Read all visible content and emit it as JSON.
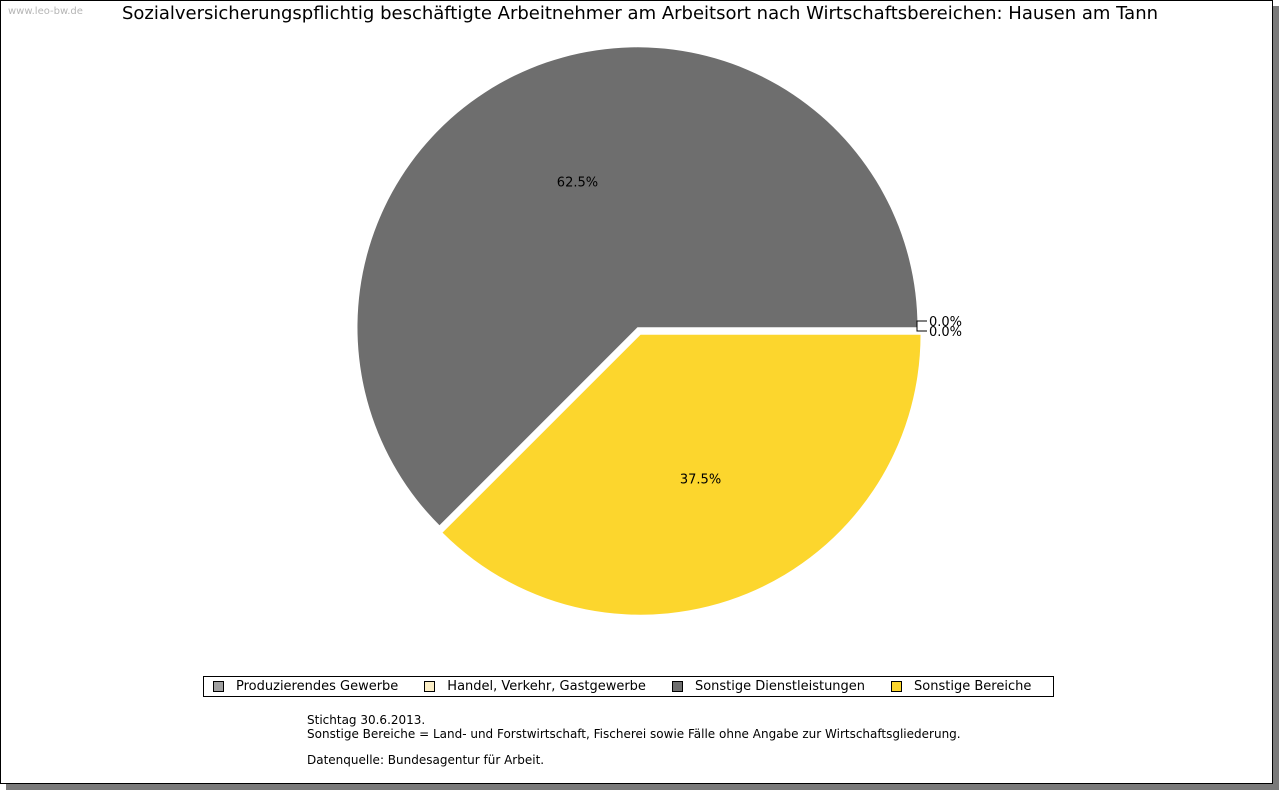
{
  "watermark": "www.leo-bw.de",
  "title": "Sozialversicherungspflichtig beschäftigte Arbeitnehmer am Arbeitsort nach Wirtschaftsbereichen: Hausen am Tann",
  "chart_data": {
    "type": "pie",
    "title": "Sozialversicherungspflichtig beschäftigte Arbeitnehmer am Arbeitsort nach Wirtschaftsbereichen: Hausen am Tann",
    "slices": [
      {
        "name": "Produzierendes Gewerbe",
        "value": 0.0,
        "label": "0.0%",
        "color": "#a0a0a0"
      },
      {
        "name": "Handel, Verkehr, Gastgewerbe",
        "value": 0.0,
        "label": "0.0%",
        "color": "#fbeec6"
      },
      {
        "name": "Sonstige Dienstleistungen",
        "value": 62.5,
        "label": "62.5%",
        "color": "#6e6e6e"
      },
      {
        "name": "Sonstige Bereiche",
        "value": 37.5,
        "label": "37.5%",
        "color": "#fcd62d"
      }
    ],
    "legend_position": "bottom"
  },
  "legend": [
    {
      "label": "Produzierendes Gewerbe",
      "color": "#a0a0a0"
    },
    {
      "label": "Handel, Verkehr, Gastgewerbe",
      "color": "#fbeec6"
    },
    {
      "label": "Sonstige Dienstleistungen",
      "color": "#6e6e6e"
    },
    {
      "label": "Sonstige Bereiche",
      "color": "#fcd62d"
    }
  ],
  "notes": {
    "line1": "Stichtag 30.6.2013.",
    "line2": "Sonstige Bereiche = Land- und Forstwirtschaft, Fischerei sowie Fälle ohne Angabe zur Wirtschaftsgliederung.",
    "line3": "Datenquelle: Bundesagentur für Arbeit."
  }
}
